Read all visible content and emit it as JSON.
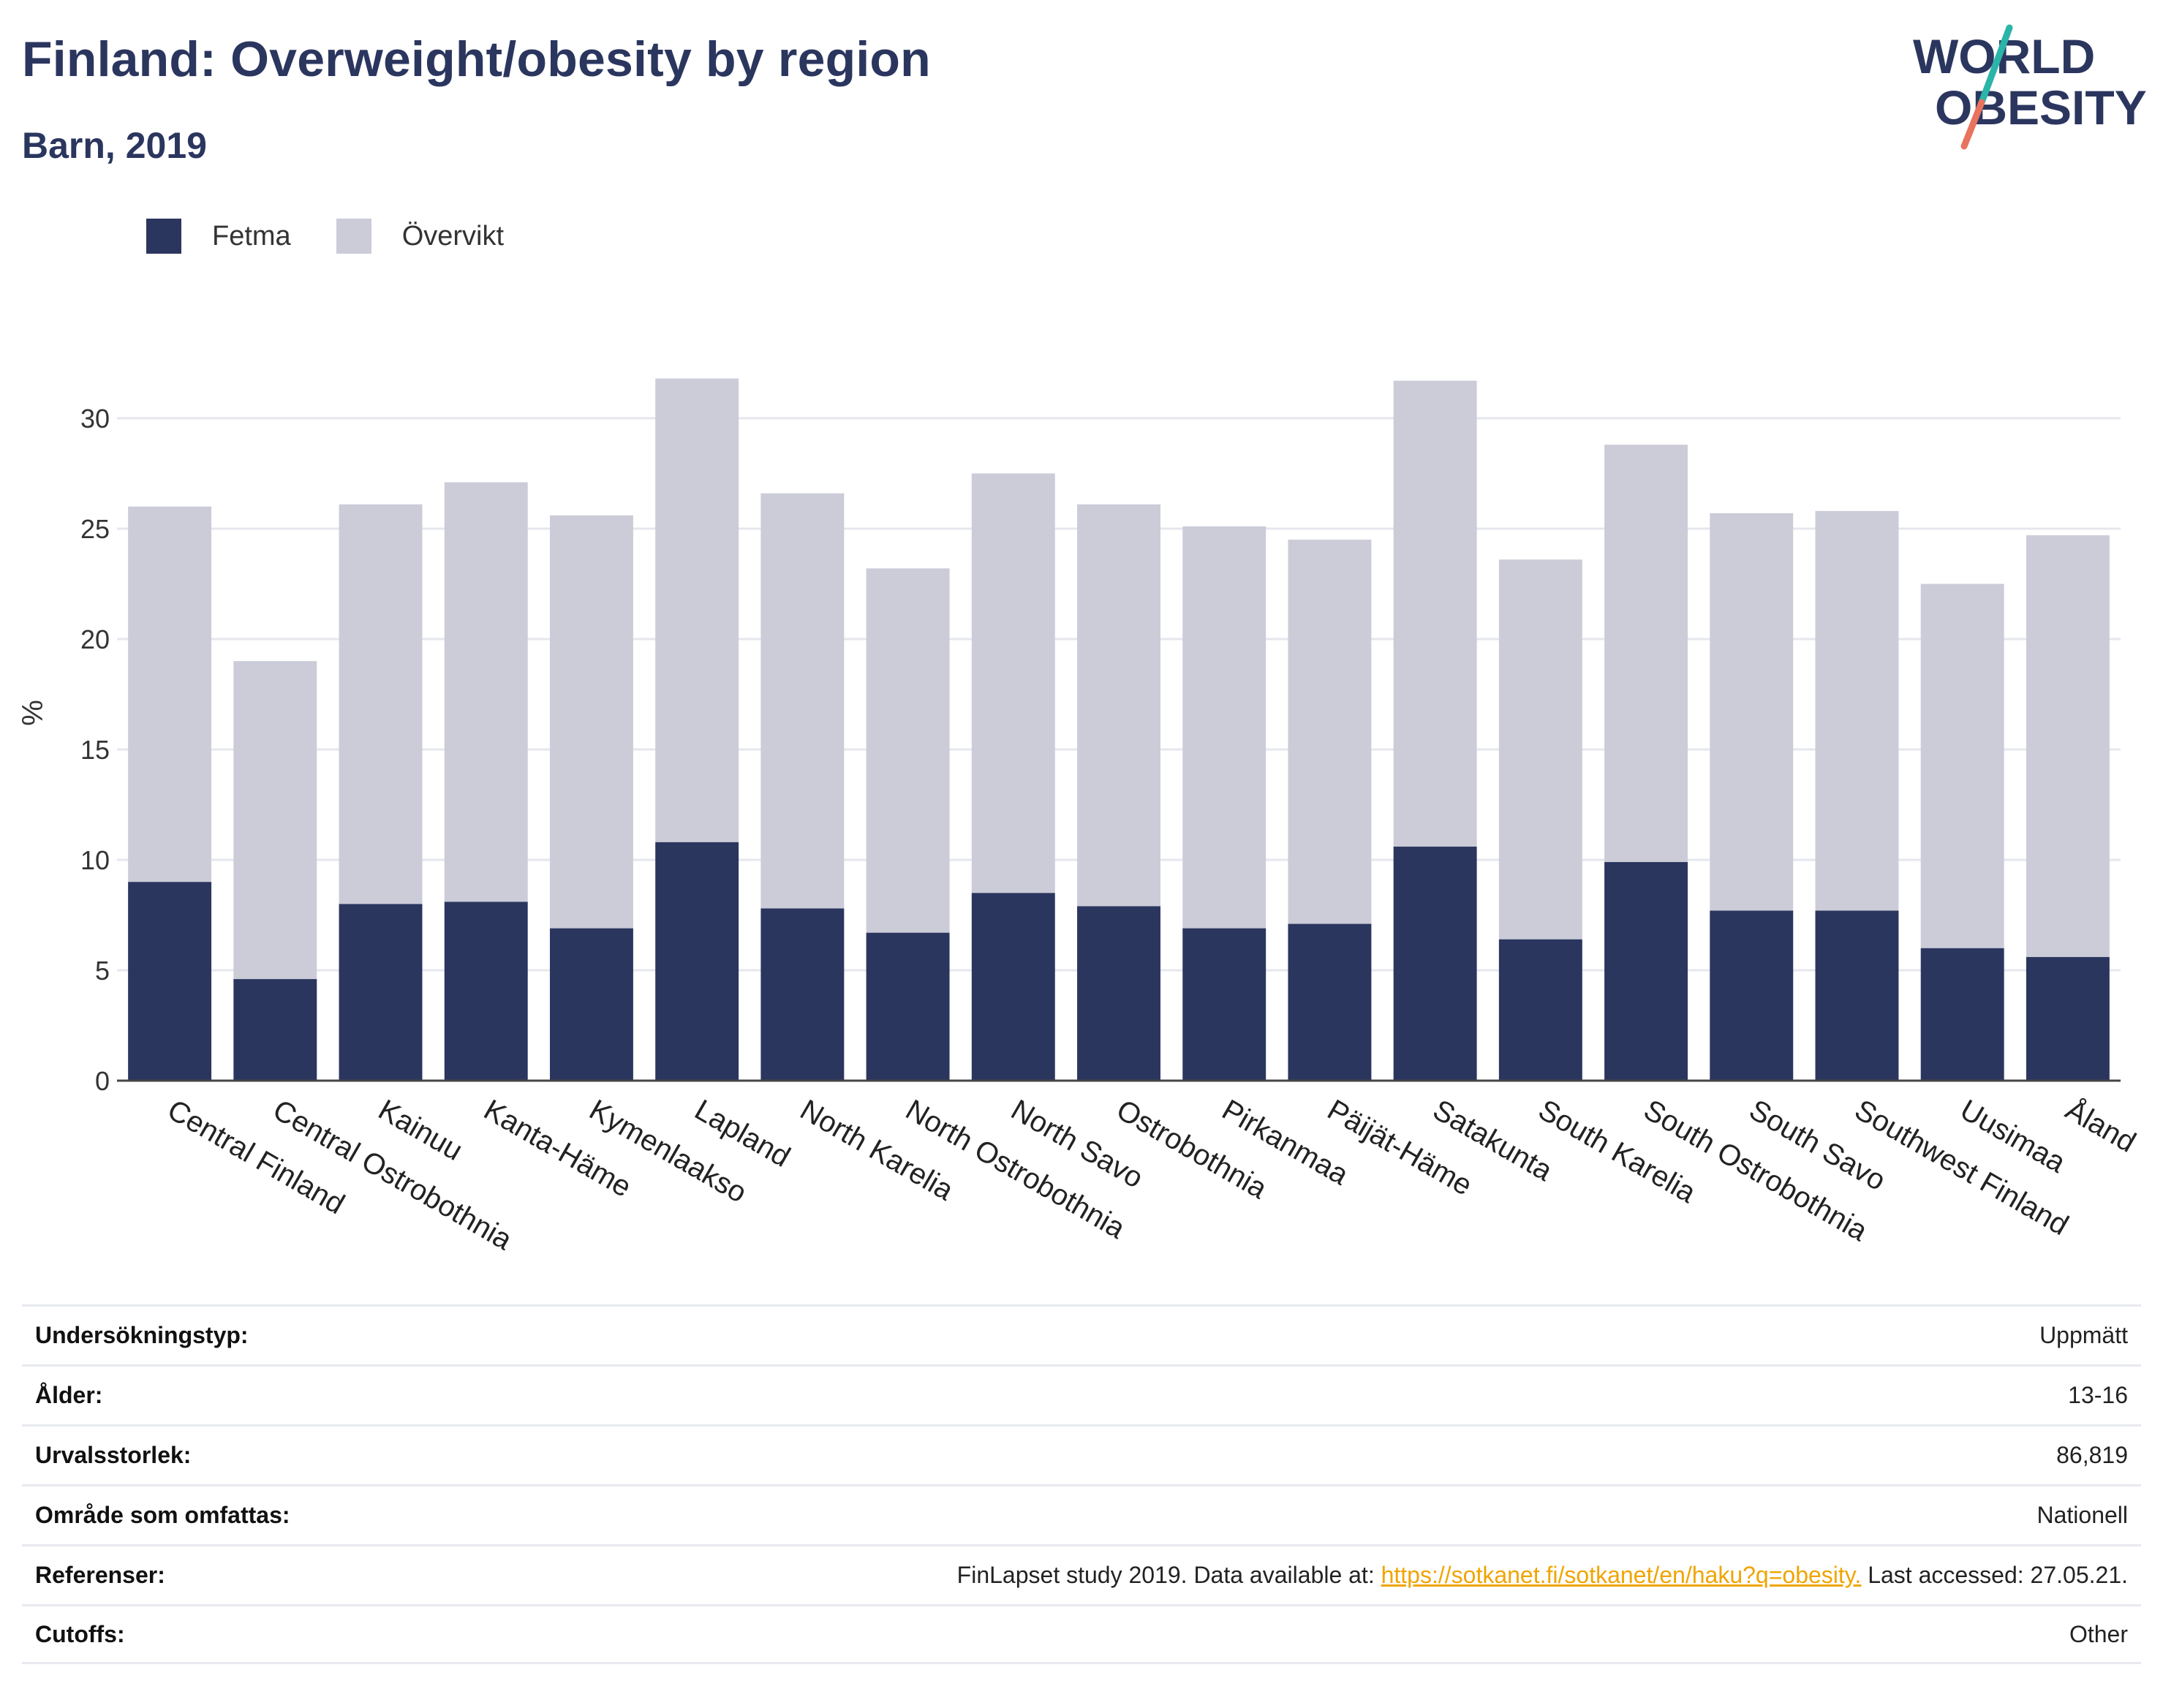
{
  "header": {
    "title": "Finland: Overweight/obesity by region",
    "subtitle": "Barn, 2019",
    "logo_line1": "WORLD",
    "logo_line2": "OBESITY"
  },
  "colors": {
    "fetma": "#2b365f",
    "overvikt": "#cbccd8",
    "logo_text": "#2b365f",
    "logo_slash_top": "#2bb5a8",
    "logo_slash_bottom": "#e8735e",
    "link": "#f0a500"
  },
  "legend": {
    "fetma": "Fetma",
    "overvikt": "Övervikt"
  },
  "chart_data": {
    "type": "bar",
    "stacked": true,
    "ylabel": "%",
    "xlabel": "",
    "ylim": [
      0,
      33
    ],
    "yticks": [
      0,
      5,
      10,
      15,
      20,
      25,
      30
    ],
    "grid": true,
    "legend_position": "top-left",
    "categories": [
      "Central Finland",
      "Central Ostrobothnia",
      "Kainuu",
      "Kanta-Häme",
      "Kymenlaakso",
      "Lapland",
      "North Karelia",
      "North Ostrobothnia",
      "North Savo",
      "Ostrobothnia",
      "Pirkanmaa",
      "Päijät-Häme",
      "Satakunta",
      "South Karelia",
      "South Ostrobothnia",
      "South Savo",
      "Southwest Finland",
      "Uusimaa",
      "Åland"
    ],
    "series": [
      {
        "name": "Fetma",
        "values": [
          9.0,
          4.6,
          8.0,
          8.1,
          6.9,
          10.8,
          7.8,
          6.7,
          8.5,
          7.9,
          6.9,
          7.1,
          10.6,
          6.4,
          9.9,
          7.7,
          7.7,
          6.0,
          5.6
        ]
      },
      {
        "name": "Övervikt",
        "values": [
          17.0,
          14.4,
          18.1,
          19.0,
          18.7,
          21.0,
          18.8,
          16.5,
          19.0,
          18.2,
          18.2,
          17.4,
          21.1,
          17.2,
          18.9,
          18.0,
          18.1,
          16.5,
          19.1
        ]
      }
    ]
  },
  "info": {
    "rows": [
      {
        "label": "Undersökningstyp:",
        "value": "Uppmätt"
      },
      {
        "label": "Ålder:",
        "value": "13-16"
      },
      {
        "label": "Urvalsstorlek:",
        "value": "86,819"
      },
      {
        "label": "Område som omfattas:",
        "value": "Nationell"
      },
      {
        "label": "Referenser:",
        "value_prefix": "FinLapset study 2019. Data available at: ",
        "link": "https://sotkanet.fi/sotkanet/en/haku?q=obesity.",
        "value_suffix": " Last accessed: 27.05.21."
      },
      {
        "label": "Cutoffs:",
        "value": "Other"
      }
    ]
  }
}
